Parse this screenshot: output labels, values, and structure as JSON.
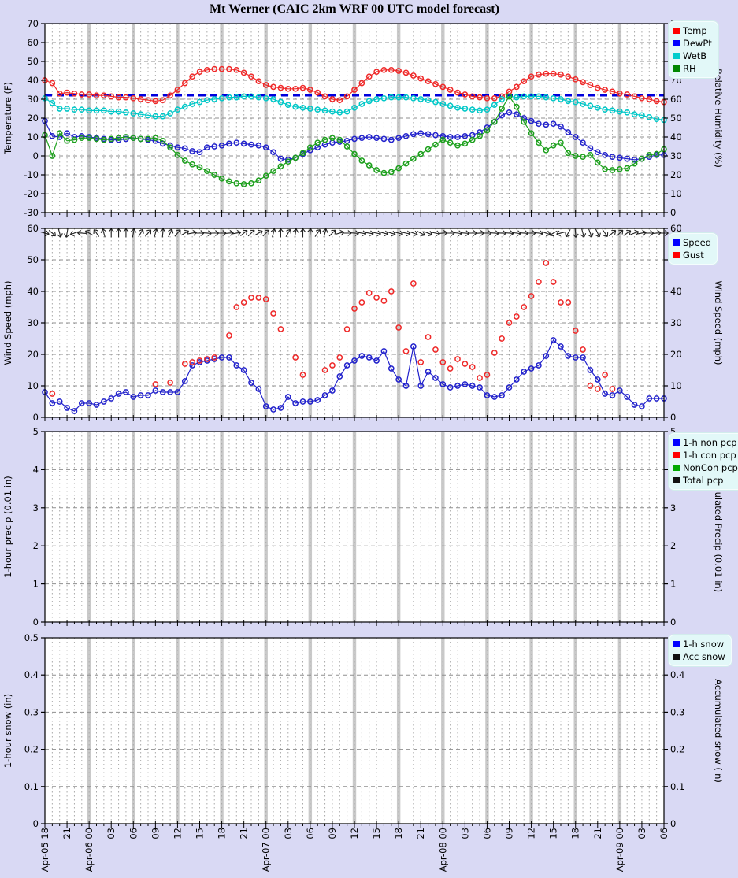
{
  "title": "Mt Werner (CAIC 2km WRF 00 UTC model forecast)",
  "colors": {
    "background": "#d9d9f4",
    "plot_background": "#ffffff",
    "legend_background": "#e2f8f8",
    "day_band": "#c9c9c9",
    "grid": "#8f8f8f",
    "freezing_line": "#0000dd",
    "temp": "#ef2929",
    "dewpt": "#2222cc",
    "wetb": "#00c8c8",
    "rh": "#1ca01c",
    "speed": "#2222cc",
    "gust": "#ef2929",
    "wind_barb": "#222222"
  },
  "x_axis": {
    "start": "Apr-05 18",
    "end": "Apr-09 06",
    "hours_total": 84,
    "tick_every_hours": 3,
    "tick_labels": [
      "Apr-05 18",
      "21",
      "Apr-06 00",
      "03",
      "06",
      "09",
      "12",
      "15",
      "18",
      "21",
      "Apr-07 00",
      "03",
      "06",
      "09",
      "12",
      "15",
      "18",
      "21",
      "Apr-08 00",
      "03",
      "06",
      "09",
      "12",
      "15",
      "18",
      "21",
      "Apr-09 00",
      "03",
      "06"
    ]
  },
  "panels": [
    {
      "id": "temperature",
      "left_axis_label": "Temperature (F)",
      "right_axis_label": "Relative Humidity (%)",
      "left_ticks": [
        70,
        60,
        50,
        40,
        30,
        20,
        10,
        0,
        -10,
        -20,
        -30
      ],
      "right_ticks": [
        100,
        90,
        80,
        70,
        60,
        50,
        40,
        30,
        20,
        10,
        0
      ],
      "freezing_line_f": 32,
      "legend": [
        {
          "label": "Temp",
          "color": "#ff0000"
        },
        {
          "label": "DewPt",
          "color": "#0000ff"
        },
        {
          "label": "WetB",
          "color": "#00cccc"
        },
        {
          "label": "RH",
          "color": "#008800"
        }
      ]
    },
    {
      "id": "wind",
      "left_axis_label": "Wind Speed (mph)",
      "right_axis_label": "Wind Speed (mph)",
      "left_ticks": [
        60,
        50,
        40,
        30,
        20,
        10,
        0
      ],
      "right_ticks": [
        60,
        50,
        40,
        30,
        20,
        10,
        0
      ],
      "legend": [
        {
          "label": "Speed",
          "color": "#0000ff"
        },
        {
          "label": "Gust",
          "color": "#ff0000"
        }
      ]
    },
    {
      "id": "precip",
      "left_axis_label": "1-hour precip (0.01 in)",
      "right_axis_label": "Accumulated Precip (0.01 in)",
      "left_ticks": [
        5,
        4,
        3,
        2,
        1,
        0
      ],
      "right_ticks": [
        5,
        4,
        3,
        2,
        1,
        0
      ],
      "legend": [
        {
          "label": "1-h non pcp",
          "color": "#0000ff"
        },
        {
          "label": "1-h con pcp",
          "color": "#ff0000"
        },
        {
          "label": "NonCon pcp",
          "color": "#00aa00"
        },
        {
          "label": "Total pcp",
          "color": "#111111"
        }
      ]
    },
    {
      "id": "snow",
      "left_axis_label": "1-hour snow (in)",
      "right_axis_label": "Accumulated snow (in)",
      "left_ticks": [
        0.5,
        0.4,
        0.3,
        0.2,
        0.1,
        0
      ],
      "right_ticks": [
        0.5,
        0.4,
        0.3,
        0.2,
        0.1,
        0
      ],
      "legend": [
        {
          "label": "1-h snow",
          "color": "#0000ff"
        },
        {
          "label": "Acc snow",
          "color": "#111111"
        }
      ]
    }
  ],
  "chart_data": [
    {
      "type": "line",
      "panel": "temperature",
      "x_unit": "hours from Apr-05 18:00, 1-h step",
      "left_axis_range": [
        -30,
        70
      ],
      "right_axis_range": [
        0,
        100
      ],
      "series": [
        {
          "name": "Temp",
          "axis": "left",
          "color": "#ef2929",
          "values": [
            40,
            38.5,
            33,
            33.5,
            33,
            32.5,
            32.5,
            32,
            32,
            31.5,
            31,
            31,
            30.5,
            30,
            29.5,
            29,
            29.5,
            32,
            35,
            38.5,
            42,
            44.5,
            45.5,
            46,
            46,
            46,
            45.5,
            44,
            42,
            39.5,
            37.5,
            36.5,
            36,
            35.5,
            35.5,
            36,
            35,
            33.5,
            31.5,
            30,
            29.5,
            31.5,
            35,
            38.5,
            42,
            44.5,
            45.5,
            45.5,
            45,
            44,
            42.5,
            41,
            39.5,
            38,
            36.5,
            35,
            33.5,
            32.5,
            31.5,
            31,
            30.5,
            30.5,
            31.5,
            34,
            36.5,
            39.5,
            42,
            43,
            43.5,
            43.5,
            43,
            42,
            40.5,
            39,
            37.5,
            36,
            35,
            34,
            33,
            32.5,
            31.5,
            30.5,
            30,
            29,
            28.5
          ]
        },
        {
          "name": "DewPt",
          "axis": "left",
          "color": "#2222cc",
          "values": [
            18.5,
            10.5,
            10,
            12,
            10,
            10.5,
            10,
            9.5,
            9,
            8.5,
            8.5,
            9,
            9.5,
            9,
            8.5,
            8,
            6.5,
            5.5,
            4.5,
            4,
            2.5,
            2,
            4.5,
            5,
            5.5,
            6.5,
            7,
            6.5,
            6,
            5.5,
            4.5,
            2,
            -1.5,
            -2,
            -1,
            1,
            3,
            4.5,
            6,
            7,
            7.5,
            8,
            9,
            9.5,
            10,
            9.5,
            9,
            8.5,
            9.5,
            10.5,
            11.5,
            12,
            11.5,
            11,
            10.5,
            10,
            10,
            10.5,
            11,
            12.5,
            15,
            18,
            21.5,
            23,
            22,
            20,
            18.5,
            17,
            16.5,
            17,
            15.5,
            12.5,
            10,
            7,
            4,
            2,
            0.5,
            -0.5,
            -1,
            -1.5,
            -2,
            -1.5,
            -0.5,
            0.5,
            0.5
          ]
        },
        {
          "name": "WetB",
          "axis": "left",
          "color": "#00c8c8",
          "values": [
            30.5,
            28,
            25,
            25,
            24.5,
            24.5,
            24,
            24,
            24,
            23.5,
            23.5,
            23,
            22.5,
            22,
            21.5,
            21,
            21,
            22.5,
            24.5,
            26,
            27.5,
            28.5,
            29.5,
            30,
            30.5,
            31,
            31,
            31.5,
            31.5,
            31,
            30.5,
            30,
            28.5,
            27,
            26,
            25.5,
            25,
            24.5,
            24,
            23.5,
            23,
            23.5,
            25.5,
            27.5,
            29,
            30,
            30.5,
            31,
            31,
            31,
            30.5,
            30,
            29.5,
            28.5,
            27.5,
            26.5,
            25.5,
            25,
            24.5,
            24,
            24.5,
            27,
            30,
            31.5,
            31,
            31.5,
            31.5,
            31.5,
            31,
            30.5,
            30,
            29,
            28.5,
            27.5,
            26.5,
            25.5,
            24.5,
            24,
            23.5,
            23,
            22,
            21.5,
            20.5,
            19.5,
            19
          ]
        },
        {
          "name": "RH",
          "axis": "right",
          "color": "#1ca01c",
          "values": [
            41,
            30,
            42,
            38,
            38.5,
            39.5,
            39.5,
            39,
            38.5,
            39,
            39.5,
            40,
            39.5,
            39,
            39,
            39.5,
            38,
            34.5,
            30.5,
            27.5,
            25.5,
            24,
            22,
            20,
            18,
            16.5,
            15.5,
            15,
            15.5,
            17,
            19.5,
            22,
            24.5,
            27,
            29,
            31.5,
            34.5,
            37,
            38.5,
            39.5,
            38.5,
            35,
            31,
            27.5,
            25,
            22.5,
            21,
            21.5,
            23.5,
            26,
            28.5,
            31,
            33.5,
            36,
            38.5,
            37,
            35.5,
            36.5,
            38.5,
            40.5,
            43.5,
            48,
            55,
            61.5,
            56,
            48,
            42,
            37,
            33,
            35.5,
            37,
            31.5,
            30,
            29.5,
            30.5,
            26.5,
            23,
            22.5,
            23,
            23.5,
            26,
            28.5,
            30.5,
            31,
            33.5
          ]
        }
      ]
    },
    {
      "type": "line+scatter",
      "panel": "wind",
      "x_unit": "hours from Apr-05 18:00, 1-h step",
      "left_axis_range": [
        0,
        60
      ],
      "series": [
        {
          "name": "Speed",
          "axis": "left",
          "color": "#2222cc",
          "values": [
            8,
            4.5,
            5,
            3,
            2,
            4.5,
            4.5,
            4,
            5,
            6,
            7.5,
            8,
            6.5,
            7,
            7,
            8.5,
            8,
            8,
            8,
            11.5,
            16.5,
            17.5,
            18,
            18.5,
            19,
            19,
            16.5,
            15,
            11,
            9,
            3.5,
            2.5,
            3,
            6.5,
            4.5,
            5,
            5,
            5.5,
            7,
            8.5,
            13,
            16.5,
            18,
            19.5,
            19,
            18,
            21,
            15.5,
            12,
            10,
            22.5,
            10,
            14.5,
            12.5,
            10.5,
            9.5,
            10,
            10.5,
            10,
            9.5,
            7,
            6.5,
            7,
            9.5,
            12,
            14.5,
            15.5,
            16.5,
            19.5,
            24.5,
            22.5,
            19.5,
            19,
            19,
            15,
            12,
            7.5,
            7,
            8.5,
            6.5,
            4,
            3.5,
            6,
            6,
            6
          ]
        },
        {
          "name": "Gust",
          "axis": "left",
          "color": "#ef2929",
          "markers_only": true,
          "values": [
            null,
            7.5,
            null,
            null,
            null,
            null,
            null,
            null,
            null,
            null,
            null,
            null,
            null,
            null,
            null,
            10.5,
            null,
            11,
            null,
            17,
            17.5,
            18,
            18.5,
            19,
            null,
            26,
            35,
            36.5,
            38,
            38,
            37.5,
            33,
            28,
            null,
            19,
            13.5,
            null,
            null,
            15,
            16.5,
            19,
            28,
            34.5,
            36.5,
            39.5,
            38,
            37,
            40,
            28.5,
            21,
            42.5,
            17.5,
            25.5,
            21.5,
            17.5,
            15.5,
            18.5,
            17,
            16,
            12.5,
            13.5,
            20.5,
            25,
            30,
            32,
            35,
            38.5,
            43,
            49,
            43,
            36.5,
            36.5,
            27.5,
            21.5,
            10,
            9,
            13.5,
            9,
            null,
            null,
            null,
            null,
            null,
            null,
            null
          ]
        }
      ],
      "wind_direction_deg_cw_from_east": [
        15,
        40,
        75,
        100,
        160,
        185,
        210,
        235,
        255,
        270,
        270,
        270,
        280,
        300,
        310,
        285,
        275,
        295,
        310,
        330,
        350,
        0,
        5,
        0,
        0,
        355,
        350,
        320,
        315,
        330,
        315,
        285,
        270,
        300,
        280,
        270,
        275,
        305,
        285,
        315,
        345,
        0,
        5,
        10,
        10,
        12,
        15,
        18,
        15,
        12,
        20,
        28,
        22,
        12,
        355,
        0,
        8,
        5,
        0,
        357,
        0,
        5,
        2,
        5,
        8,
        5,
        0,
        8,
        20,
        150,
        165,
        120,
        85,
        75,
        70,
        65,
        55,
        320,
        315,
        325,
        340,
        350,
        0,
        355,
        0
      ]
    },
    {
      "type": "line",
      "panel": "precip",
      "left_axis_range": [
        0,
        5
      ],
      "series": []
    },
    {
      "type": "line",
      "panel": "snow",
      "left_axis_range": [
        0,
        0.5
      ],
      "series": []
    }
  ]
}
